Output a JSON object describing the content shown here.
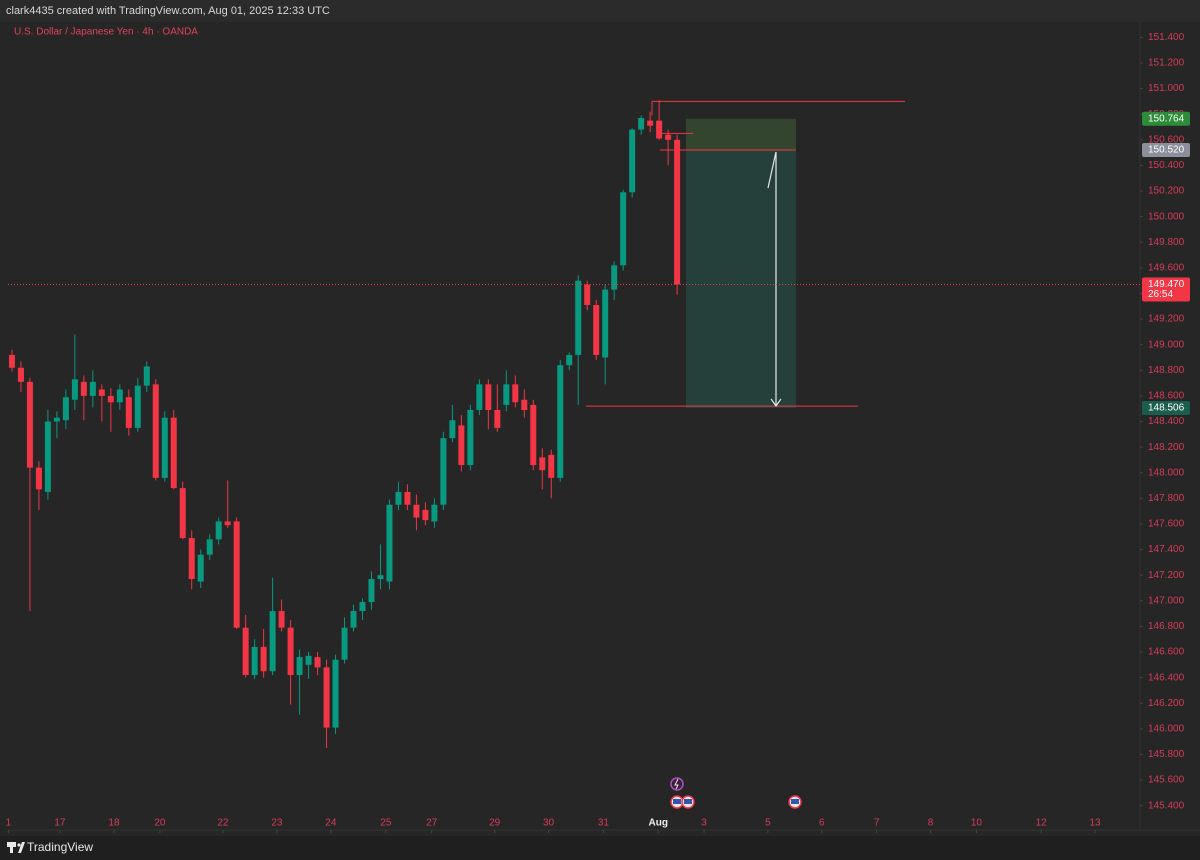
{
  "header": "clark4435 created with TradingView.com, Aug 01, 2025 12:33 UTC",
  "footer": "TradingView",
  "chart_data": {
    "type": "candlestick",
    "title": "U.S. Dollar / Japanese Yen · 4h · OANDA",
    "colors": {
      "up": "#089981",
      "down": "#f23645"
    },
    "x": [
      0,
      1,
      2,
      3,
      4,
      5,
      6,
      7,
      8,
      9,
      10,
      11,
      12,
      13,
      14,
      15,
      16,
      17,
      18,
      19,
      20,
      21,
      22,
      23,
      24,
      25,
      26,
      27,
      28,
      29,
      30,
      31,
      32,
      33,
      34,
      35,
      36,
      37,
      38,
      39,
      40,
      41,
      42,
      43,
      44,
      45,
      46,
      47,
      48,
      49,
      50,
      51,
      52,
      53,
      54,
      55,
      56,
      57,
      58,
      59,
      60,
      61,
      62,
      63,
      64,
      65,
      66,
      67,
      68,
      69,
      70,
      71,
      72,
      73,
      74
    ],
    "open": [
      148.92,
      148.82,
      148.71,
      148.04,
      147.85,
      148.4,
      148.41,
      148.57,
      148.71,
      148.6,
      148.65,
      148.6,
      148.55,
      148.59,
      148.35,
      148.68,
      148.69,
      147.96,
      148.43,
      147.88,
      147.49,
      147.15,
      147.36,
      147.48,
      147.62,
      147.62,
      146.79,
      146.42,
      146.64,
      146.45,
      146.92,
      146.79,
      146.42,
      146.5,
      146.56,
      146.48,
      146.01,
      146.54,
      146.79,
      146.92,
      146.99,
      147.17,
      147.15,
      147.75,
      147.85,
      147.75,
      147.71,
      147.62,
      147.75,
      148.27,
      148.37,
      148.06,
      148.49,
      148.69,
      148.49,
      148.53,
      148.69,
      148.57,
      148.53,
      148.12,
      148.14,
      147.96,
      148.84,
      148.92,
      149.47,
      149.31,
      148.9,
      149.43,
      149.62,
      150.19,
      150.68,
      150.75,
      150.75,
      150.64,
      150.6
    ],
    "high": [
      148.96,
      148.87,
      148.74,
      148.09,
      148.49,
      148.48,
      148.65,
      149.08,
      148.76,
      148.8,
      148.69,
      148.66,
      148.69,
      148.65,
      148.74,
      148.87,
      148.73,
      148.48,
      148.49,
      147.93,
      147.55,
      147.4,
      147.52,
      147.65,
      147.94,
      147.65,
      146.89,
      146.7,
      146.78,
      147.18,
      147.01,
      146.85,
      146.62,
      146.6,
      146.6,
      146.54,
      146.58,
      146.87,
      146.97,
      147.02,
      147.23,
      147.44,
      147.79,
      147.93,
      147.91,
      147.83,
      147.77,
      147.8,
      148.32,
      148.53,
      148.45,
      148.53,
      148.73,
      148.73,
      148.69,
      148.8,
      148.76,
      148.65,
      148.57,
      148.19,
      148.18,
      148.88,
      148.94,
      149.54,
      149.5,
      149.35,
      149.47,
      149.65,
      150.21,
      150.69,
      150.79,
      150.82,
      150.91,
      150.68,
      150.64
    ],
    "low": [
      148.79,
      148.63,
      146.92,
      147.71,
      147.79,
      148.27,
      148.34,
      148.49,
      148.41,
      148.51,
      148.4,
      148.32,
      148.49,
      148.29,
      148.32,
      148.63,
      147.94,
      147.93,
      147.87,
      147.48,
      147.09,
      147.1,
      147.32,
      147.44,
      147.57,
      146.78,
      146.4,
      146.39,
      146.4,
      146.42,
      146.76,
      146.19,
      146.11,
      146.39,
      146.42,
      145.85,
      145.96,
      146.51,
      146.76,
      146.85,
      146.93,
      147.09,
      147.09,
      147.71,
      147.71,
      147.55,
      147.59,
      147.57,
      147.71,
      148.24,
      148.01,
      148.02,
      148.45,
      148.34,
      148.32,
      148.48,
      148.51,
      148.43,
      148.02,
      147.87,
      147.8,
      147.93,
      148.8,
      148.53,
      149.27,
      148.88,
      148.69,
      149.35,
      149.58,
      150.15,
      150.64,
      150.66,
      150.6,
      150.4,
      149.39
    ],
    "close": [
      148.82,
      148.71,
      148.04,
      147.87,
      148.4,
      148.43,
      148.59,
      148.73,
      148.6,
      148.71,
      148.6,
      148.55,
      148.65,
      148.35,
      148.68,
      148.83,
      147.96,
      148.43,
      147.88,
      147.49,
      147.17,
      147.36,
      147.48,
      147.62,
      147.59,
      146.79,
      146.42,
      146.64,
      146.45,
      146.92,
      146.79,
      146.42,
      146.56,
      146.57,
      146.48,
      146.01,
      146.54,
      146.79,
      146.92,
      146.99,
      147.17,
      147.2,
      147.75,
      147.85,
      147.75,
      147.65,
      147.63,
      147.75,
      148.27,
      148.41,
      148.06,
      148.49,
      148.69,
      148.49,
      148.35,
      148.69,
      148.55,
      148.49,
      148.06,
      148.02,
      147.96,
      148.84,
      148.92,
      149.5,
      149.31,
      148.92,
      149.43,
      149.62,
      150.19,
      150.68,
      150.77,
      150.71,
      150.61,
      150.6,
      149.47
    ],
    "xlim": [
      -0.44,
      125.5
    ],
    "xticks": [
      {
        "value": -0.4,
        "label": "1"
      },
      {
        "value": 5.34,
        "label": "17"
      },
      {
        "value": 11.35,
        "label": "18"
      },
      {
        "value": 16.46,
        "label": "20"
      },
      {
        "value": 23.47,
        "label": "22"
      },
      {
        "value": 29.48,
        "label": "23"
      },
      {
        "value": 35.48,
        "label": "24"
      },
      {
        "value": 41.6,
        "label": "25"
      },
      {
        "value": 46.7,
        "label": "27"
      },
      {
        "value": 53.7,
        "label": "29"
      },
      {
        "value": 59.7,
        "label": "30"
      },
      {
        "value": 65.8,
        "label": "31"
      },
      {
        "value": 71.9,
        "label": "Aug"
      },
      {
        "value": 77.0,
        "label": "3"
      },
      {
        "value": 84.1,
        "label": "5"
      },
      {
        "value": 90.1,
        "label": "6"
      },
      {
        "value": 96.2,
        "label": "7"
      },
      {
        "value": 102.2,
        "label": "8"
      },
      {
        "value": 107.3,
        "label": "10"
      },
      {
        "value": 114.5,
        "label": "12"
      },
      {
        "value": 120.5,
        "label": "13"
      }
    ],
    "ylim": [
      145.21,
      151.52
    ],
    "yticks": [
      {
        "value": 151.4,
        "label": "151.400"
      },
      {
        "value": 151.2,
        "label": "151.200"
      },
      {
        "value": 151.0,
        "label": "151.000"
      },
      {
        "value": 150.8,
        "label": "150.800"
      },
      {
        "value": 150.6,
        "label": "150.600"
      },
      {
        "value": 150.4,
        "label": "150.400"
      },
      {
        "value": 150.2,
        "label": "150.200"
      },
      {
        "value": 150.0,
        "label": "150.000"
      },
      {
        "value": 149.8,
        "label": "149.800"
      },
      {
        "value": 149.6,
        "label": "149.600"
      },
      {
        "value": 149.4,
        "label": "149.400"
      },
      {
        "value": 149.2,
        "label": "149.200"
      },
      {
        "value": 149.0,
        "label": "149.000"
      },
      {
        "value": 148.8,
        "label": "148.800"
      },
      {
        "value": 148.6,
        "label": "148.600"
      },
      {
        "value": 148.4,
        "label": "148.400"
      },
      {
        "value": 148.2,
        "label": "148.200"
      },
      {
        "value": 148.0,
        "label": "148.000"
      },
      {
        "value": 147.8,
        "label": "147.800"
      },
      {
        "value": 147.6,
        "label": "147.600"
      },
      {
        "value": 147.4,
        "label": "147.400"
      },
      {
        "value": 147.2,
        "label": "147.200"
      },
      {
        "value": 147.0,
        "label": "147.000"
      },
      {
        "value": 146.8,
        "label": "146.800"
      },
      {
        "value": 146.6,
        "label": "146.600"
      },
      {
        "value": 146.4,
        "label": "146.400"
      },
      {
        "value": 146.2,
        "label": "146.200"
      },
      {
        "value": 146.0,
        "label": "146.000"
      },
      {
        "value": 145.8,
        "label": "145.800"
      },
      {
        "value": 145.6,
        "label": "145.600"
      },
      {
        "value": 145.4,
        "label": "145.400"
      }
    ],
    "grid": false,
    "last_price": {
      "value": 149.47,
      "label": "149.470",
      "countdown": "26:54"
    },
    "position": {
      "stop": {
        "value": 150.764,
        "label": "150.764"
      },
      "entry": {
        "value": 150.52,
        "label": "150.520"
      },
      "target": {
        "value": 148.506,
        "label": "148.506"
      }
    },
    "lines": [
      150.9,
      150.65,
      148.52
    ]
  }
}
